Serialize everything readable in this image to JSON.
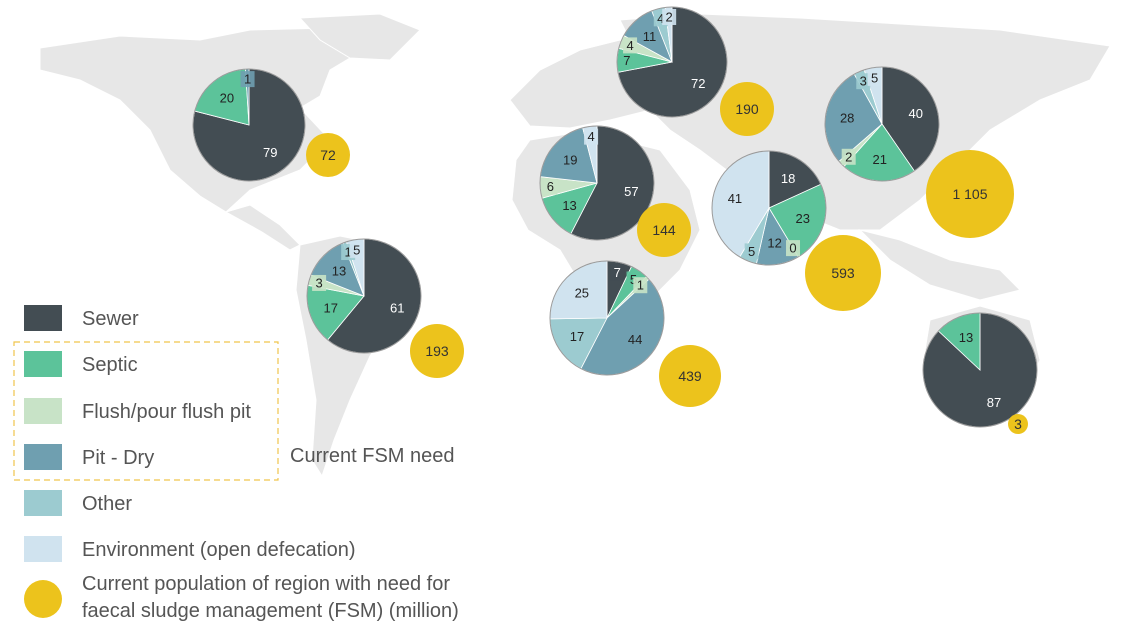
{
  "colors": {
    "Sewer": "#434d53",
    "Septic": "#5cc39a",
    "Flush/pour flush pit": "#c8e3c7",
    "Pit - Dry": "#6f9fb0",
    "Other": "#9ccbd0",
    "Environment (open defecation)": "#d0e3ef",
    "fsm": "#ecc31c",
    "map": "#e7e7e7",
    "dashed": "#f0c54c"
  },
  "legend": {
    "items": [
      {
        "label": "Sewer",
        "key": "Sewer"
      },
      {
        "label": "Septic",
        "key": "Septic"
      },
      {
        "label": "Flush/pour flush pit",
        "key": "Flush/pour flush pit"
      },
      {
        "label": "Pit - Dry",
        "key": "Pit - Dry"
      },
      {
        "label": "Other",
        "key": "Other"
      },
      {
        "label": "Environment (open defecation)",
        "key": "Environment (open defecation)"
      }
    ],
    "fsm_line1": "Current population of region with need for",
    "fsm_line2": "faecal sludge management (FSM) (million)",
    "group_label": "Current FSM need"
  },
  "chart_data": {
    "type": "pie",
    "categories": [
      "Sewer",
      "Septic",
      "Flush/pour flush pit",
      "Pit - Dry",
      "Other",
      "Environment (open defecation)"
    ],
    "regions": [
      {
        "slices": [
          {
            "category": "Sewer",
            "value": 79
          },
          {
            "category": "Septic",
            "value": 20
          },
          {
            "category": "Pit - Dry",
            "value": 1
          }
        ],
        "fsm_need": "72"
      },
      {
        "slices": [
          {
            "category": "Sewer",
            "value": 61
          },
          {
            "category": "Septic",
            "value": 17
          },
          {
            "category": "Flush/pour flush pit",
            "value": 3
          },
          {
            "category": "Pit - Dry",
            "value": 13
          },
          {
            "category": "Other",
            "value": 1
          },
          {
            "category": "Environment (open defecation)",
            "value": 5
          }
        ],
        "fsm_need": "193"
      },
      {
        "slices": [
          {
            "category": "Sewer",
            "value": 72
          },
          {
            "category": "Septic",
            "value": 7
          },
          {
            "category": "Flush/pour flush pit",
            "value": 4
          },
          {
            "category": "Pit - Dry",
            "value": 11
          },
          {
            "category": "Other",
            "value": 4
          },
          {
            "category": "Environment (open defecation)",
            "value": 2
          }
        ],
        "fsm_need": "190"
      },
      {
        "slices": [
          {
            "category": "Sewer",
            "value": 57
          },
          {
            "category": "Septic",
            "value": 13
          },
          {
            "category": "Flush/pour flush pit",
            "value": 6
          },
          {
            "category": "Pit - Dry",
            "value": 19
          },
          {
            "category": "Environment (open defecation)",
            "value": 4
          }
        ],
        "fsm_need": "144"
      },
      {
        "slices": [
          {
            "category": "Sewer",
            "value": 7
          },
          {
            "category": "Septic",
            "value": 5
          },
          {
            "category": "Flush/pour flush pit",
            "value": 1
          },
          {
            "category": "Pit - Dry",
            "value": 44
          },
          {
            "category": "Other",
            "value": 17
          },
          {
            "category": "Environment (open defecation)",
            "value": 25
          }
        ],
        "fsm_need": "439"
      },
      {
        "slices": [
          {
            "category": "Sewer",
            "value": 18
          },
          {
            "category": "Septic",
            "value": 23
          },
          {
            "category": "Flush/pour flush pit",
            "value": 0
          },
          {
            "category": "Pit - Dry",
            "value": 12
          },
          {
            "category": "Other",
            "value": 5
          },
          {
            "category": "Environment (open defecation)",
            "value": 41
          }
        ],
        "fsm_need": "593"
      },
      {
        "slices": [
          {
            "category": "Sewer",
            "value": 40
          },
          {
            "category": "Septic",
            "value": 21
          },
          {
            "category": "Flush/pour flush pit",
            "value": 2
          },
          {
            "category": "Pit - Dry",
            "value": 28
          },
          {
            "category": "Other",
            "value": 3
          },
          {
            "category": "Environment (open defecation)",
            "value": 5
          }
        ],
        "fsm_need": "1 105"
      },
      {
        "slices": [
          {
            "category": "Sewer",
            "value": 87
          },
          {
            "category": "Septic",
            "value": 13
          }
        ],
        "fsm_need": "3"
      }
    ]
  }
}
